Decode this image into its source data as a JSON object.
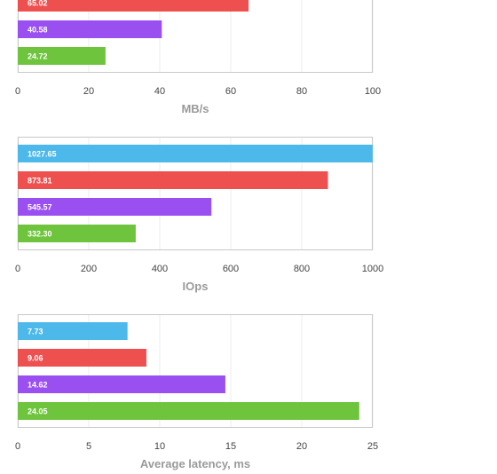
{
  "colors": [
    "#4db8ea",
    "#ee5050",
    "#9a4ff0",
    "#6ec43c"
  ],
  "chart_data": [
    {
      "type": "bar",
      "orientation": "horizontal",
      "title": "",
      "xlabel": "MB/s",
      "ylabel": "",
      "xlim": [
        0,
        100
      ],
      "xticks": [
        "0",
        "20",
        "40",
        "60",
        "80",
        "100"
      ],
      "values": [
        null,
        65.02,
        40.58,
        24.72
      ],
      "labels": [
        "",
        "65.02",
        "40.58",
        "24.72"
      ],
      "grid": true
    },
    {
      "type": "bar",
      "orientation": "horizontal",
      "title": "",
      "xlabel": "IOps",
      "ylabel": "",
      "xlim": [
        0,
        1000
      ],
      "xticks": [
        "0",
        "200",
        "400",
        "600",
        "800",
        "1000"
      ],
      "values": [
        1027.65,
        873.81,
        545.57,
        332.3
      ],
      "labels": [
        "1027.65",
        "873.81",
        "545.57",
        "332.30"
      ],
      "grid": true
    },
    {
      "type": "bar",
      "orientation": "horizontal",
      "title": "",
      "xlabel": "Average latency, ms",
      "ylabel": "",
      "xlim": [
        0,
        25
      ],
      "xticks": [
        "0",
        "5",
        "10",
        "15",
        "20",
        "25"
      ],
      "values": [
        7.73,
        9.06,
        14.62,
        24.05
      ],
      "labels": [
        "7.73",
        "9.06",
        "14.62",
        "24.05"
      ],
      "grid": true
    }
  ]
}
